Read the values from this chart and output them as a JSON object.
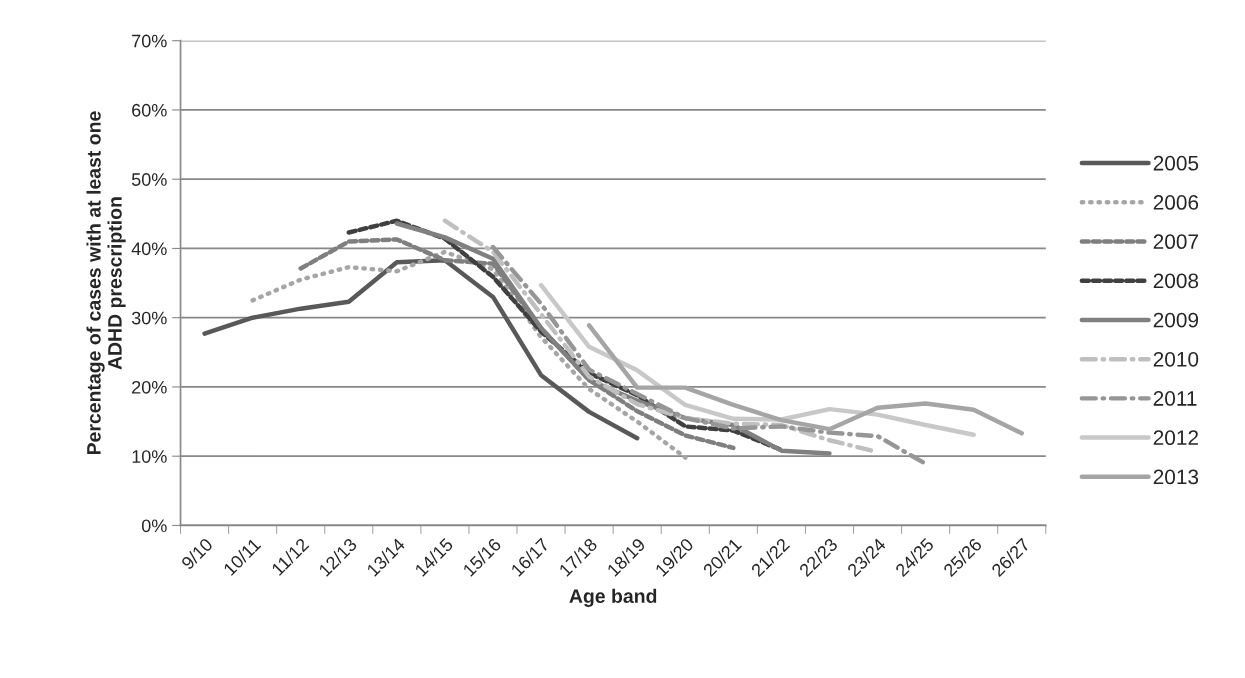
{
  "chart_data": {
    "type": "line",
    "xlabel": "Age band",
    "ylabel": "Percentage of cases with at least one\nADHD prescription",
    "categories": [
      "9/10",
      "10/11",
      "11/12",
      "12/13",
      "13/14",
      "14/15",
      "15/16",
      "16/17",
      "17/18",
      "18/19",
      "19/20",
      "20/21",
      "21/22",
      "22/23",
      "23/24",
      "24/25",
      "25/26",
      "26/27"
    ],
    "ylim": [
      0,
      70
    ],
    "yticks": [
      {
        "value": 0,
        "label": "0%"
      },
      {
        "value": 10,
        "label": "10%"
      },
      {
        "value": 20,
        "label": "20%"
      },
      {
        "value": 30,
        "label": "30%"
      },
      {
        "value": 40,
        "label": "40%"
      },
      {
        "value": 50,
        "label": "50%"
      },
      {
        "value": 60,
        "label": "60%"
      },
      {
        "value": 70,
        "label": "70%"
      }
    ],
    "grid": "y",
    "legend": "right",
    "marker": "none",
    "series": [
      {
        "name": "2005",
        "color": "#595959",
        "line_style": "solid",
        "values": [
          27.7,
          30.0,
          31.3,
          32.3,
          38.0,
          38.3,
          33.0,
          21.7,
          16.4,
          12.6,
          null,
          null,
          null,
          null,
          null,
          null,
          null,
          null
        ]
      },
      {
        "name": "2006",
        "color": "#a6a6a6",
        "line_style": "dotted",
        "values": [
          null,
          32.5,
          35.5,
          37.3,
          36.7,
          39.5,
          37.0,
          27.2,
          19.7,
          15.0,
          9.8,
          null,
          null,
          null,
          null,
          null,
          null,
          null
        ]
      },
      {
        "name": "2007",
        "color": "#7f7f7f",
        "line_style": "dashed",
        "values": [
          null,
          null,
          37.1,
          41.0,
          41.3,
          38.3,
          37.8,
          28.5,
          21.0,
          16.5,
          13.0,
          11.2,
          null,
          null,
          null,
          null,
          null,
          null
        ]
      },
      {
        "name": "2008",
        "color": "#404040",
        "line_style": "dashed",
        "values": [
          null,
          null,
          null,
          42.3,
          44.0,
          41.4,
          35.9,
          28.0,
          22.0,
          18.8,
          14.3,
          13.7,
          10.9,
          null,
          null,
          null,
          null,
          null
        ]
      },
      {
        "name": "2009",
        "color": "#808080",
        "line_style": "solid",
        "values": [
          null,
          null,
          null,
          null,
          43.6,
          41.6,
          38.5,
          28.5,
          21.0,
          18.0,
          15.5,
          14.5,
          10.8,
          10.4,
          null,
          null,
          null,
          null
        ]
      },
      {
        "name": "2010",
        "color": "#bfbfbf",
        "line_style": "dashdot",
        "values": [
          null,
          null,
          null,
          null,
          null,
          44.0,
          39.5,
          30.5,
          21.5,
          17.5,
          15.5,
          14.7,
          14.5,
          12.3,
          10.6,
          null,
          null,
          null
        ]
      },
      {
        "name": "2011",
        "color": "#969696",
        "line_style": "dashdot",
        "values": [
          null,
          null,
          null,
          null,
          null,
          null,
          40.2,
          32.0,
          22.5,
          19.0,
          15.5,
          14.0,
          14.3,
          13.4,
          12.9,
          8.9,
          null,
          null
        ]
      },
      {
        "name": "2012",
        "color": "#c8c8c8",
        "line_style": "solid",
        "values": [
          null,
          null,
          null,
          null,
          null,
          null,
          null,
          34.7,
          25.8,
          22.4,
          17.4,
          15.4,
          15.3,
          16.8,
          16.0,
          14.5,
          13.1,
          null
        ]
      },
      {
        "name": "2013",
        "color": "#a5a5a5",
        "line_style": "solid",
        "values": [
          null,
          null,
          null,
          null,
          null,
          null,
          null,
          null,
          28.9,
          19.9,
          19.9,
          17.4,
          15.2,
          13.9,
          17.0,
          17.6,
          16.7,
          13.3
        ]
      }
    ]
  }
}
